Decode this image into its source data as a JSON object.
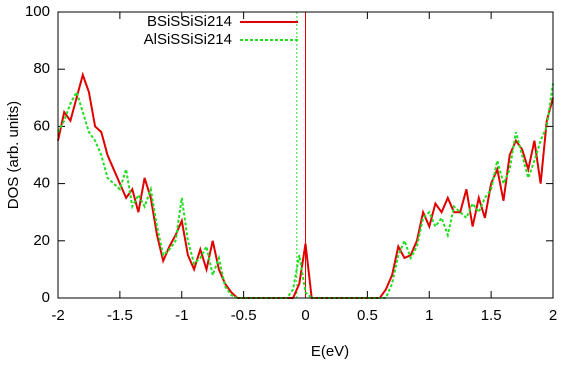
{
  "chart_data": {
    "type": "line",
    "xlabel": "E(eV)",
    "ylabel": "DOS (arb. units)",
    "x": [
      -2,
      -1.95,
      -1.9,
      -1.85,
      -1.8,
      -1.75,
      -1.7,
      -1.65,
      -1.6,
      -1.55,
      -1.5,
      -1.45,
      -1.4,
      -1.35,
      -1.3,
      -1.25,
      -1.2,
      -1.15,
      -1.1,
      -1.05,
      -1,
      -0.95,
      -0.9,
      -0.85,
      -0.8,
      -0.75,
      -0.7,
      -0.65,
      -0.6,
      -0.55,
      -0.5,
      -0.45,
      -0.4,
      -0.35,
      -0.3,
      -0.25,
      -0.2,
      -0.15,
      -0.1,
      -0.05,
      0,
      0.05,
      0.1,
      0.15,
      0.2,
      0.25,
      0.3,
      0.35,
      0.4,
      0.45,
      0.5,
      0.55,
      0.6,
      0.65,
      0.7,
      0.75,
      0.8,
      0.85,
      0.9,
      0.95,
      1,
      1.05,
      1.1,
      1.15,
      1.2,
      1.25,
      1.3,
      1.35,
      1.4,
      1.45,
      1.5,
      1.55,
      1.6,
      1.65,
      1.7,
      1.75,
      1.8,
      1.85,
      1.9,
      1.95,
      2
    ],
    "series": [
      {
        "name": "BSiSSiSi214",
        "color": "#e00000",
        "dash": false,
        "values": [
          55,
          65,
          62,
          70,
          78,
          72,
          60,
          58,
          50,
          45,
          40,
          35,
          38,
          30,
          42,
          35,
          22,
          13,
          18,
          22,
          27,
          15,
          10,
          17,
          10,
          20,
          10,
          5,
          2,
          0,
          0,
          0,
          0,
          0,
          0,
          0,
          0,
          0,
          0,
          5,
          19,
          0,
          0,
          0,
          0,
          0,
          0,
          0,
          0,
          0,
          0,
          0,
          0,
          3,
          8,
          18,
          14,
          15,
          20,
          30,
          25,
          33,
          30,
          35,
          30,
          30,
          38,
          25,
          35,
          28,
          40,
          45,
          34,
          50,
          55,
          52,
          45,
          55,
          40,
          62,
          70
        ]
      },
      {
        "name": "AlSiSSiSi214",
        "color": "#22dd22",
        "dash": true,
        "values": [
          58,
          62,
          68,
          72,
          65,
          58,
          55,
          50,
          42,
          40,
          38,
          45,
          32,
          36,
          32,
          38,
          25,
          15,
          17,
          20,
          35,
          20,
          12,
          14,
          18,
          8,
          14,
          4,
          1,
          0,
          0,
          0,
          0,
          0,
          0,
          0,
          0,
          0,
          3,
          15,
          2,
          0,
          0,
          0,
          0,
          0,
          0,
          0,
          0,
          0,
          0,
          0,
          0,
          0,
          5,
          15,
          20,
          14,
          18,
          28,
          30,
          25,
          28,
          22,
          32,
          30,
          28,
          33,
          30,
          35,
          38,
          48,
          40,
          45,
          58,
          50,
          42,
          48,
          55,
          60,
          75
        ]
      }
    ],
    "vlines": [
      {
        "x": 0,
        "color": "#e00000",
        "dash": false
      },
      {
        "x": -0.07,
        "color": "#22dd22",
        "dash": true
      }
    ],
    "xlim": [
      -2,
      2
    ],
    "ylim": [
      0,
      100
    ],
    "xticks": [
      -2,
      -1.5,
      -1,
      -0.5,
      0,
      0.5,
      1,
      1.5,
      2
    ],
    "yticks": [
      0,
      20,
      40,
      60,
      80,
      100
    ]
  }
}
